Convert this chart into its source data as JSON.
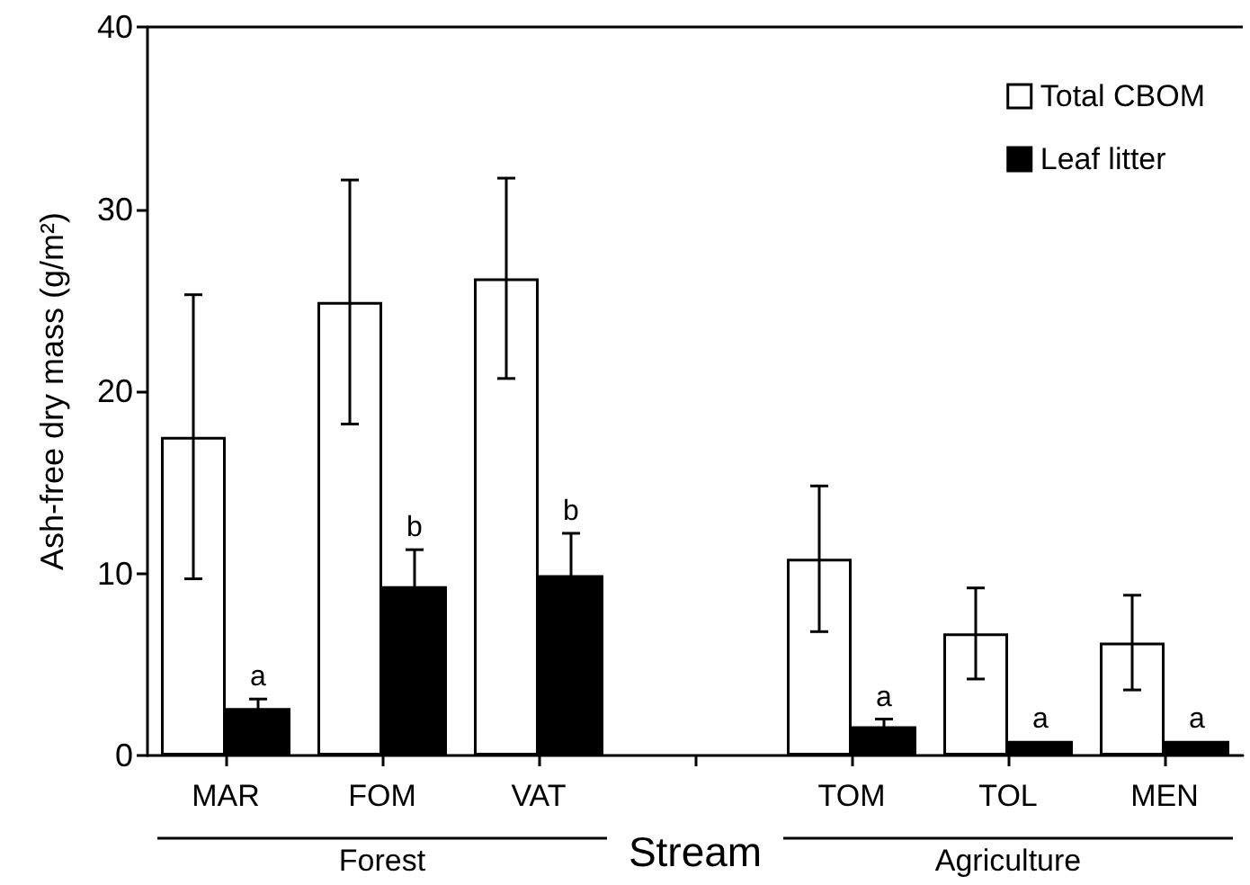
{
  "chart_data": {
    "type": "bar",
    "ylabel": "Ash-free dry mass (g/m²)",
    "xlabel": "Stream",
    "categories": [
      "MAR",
      "FOM",
      "VAT",
      null,
      "TOM",
      "TOL",
      "MEN"
    ],
    "series": [
      {
        "name": "Total CBOM",
        "color": "#ffffff",
        "values": [
          17.5,
          24.9,
          26.2,
          null,
          10.8,
          6.7,
          6.2
        ],
        "errors": [
          7.8,
          6.7,
          5.5,
          null,
          4.0,
          2.5,
          2.6
        ]
      },
      {
        "name": "Leaf litter",
        "color": "#000000",
        "values": [
          2.6,
          9.3,
          9.9,
          null,
          1.6,
          0.8,
          0.8
        ],
        "errors": [
          0.5,
          2.0,
          2.3,
          null,
          0.4,
          null,
          null
        ]
      }
    ],
    "ylim": [
      0,
      40
    ],
    "yticks": [
      0,
      10,
      20,
      30,
      40
    ],
    "grid": false,
    "legend": "top right",
    "annotations": [
      {
        "text": "a",
        "x": "MAR",
        "y": 3.1
      },
      {
        "text": "b",
        "x": "FOM",
        "y": 11.3
      },
      {
        "text": "b",
        "x": "VAT",
        "y": 12.2
      },
      {
        "text": "a",
        "x": "TOM",
        "y": 2.0
      },
      {
        "text": "a",
        "x": "TOL",
        "y": 0.8
      },
      {
        "text": "a",
        "x": "MEN",
        "y": 0.8
      },
      "Forest",
      "Agriculture"
    ]
  }
}
